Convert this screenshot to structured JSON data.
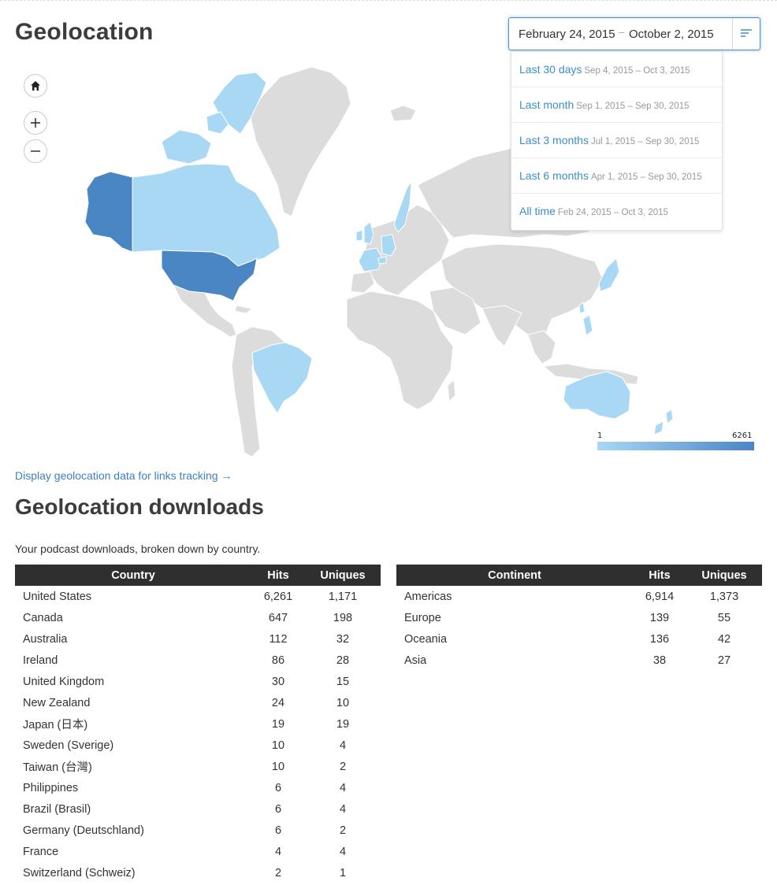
{
  "page": {
    "title": "Geolocation"
  },
  "date_range": {
    "start": "February 24, 2015",
    "separator": "–",
    "end": "October 2, 2015",
    "presets": [
      {
        "label": "Last 30 days",
        "range": "Sep 4, 2015 – Oct 3, 2015"
      },
      {
        "label": "Last month",
        "range": "Sep 1, 2015 – Sep 30, 2015"
      },
      {
        "label": "Last 3 months",
        "range": "Jul 1, 2015 – Sep 30, 2015"
      },
      {
        "label": "Last 6 months",
        "range": "Apr 1, 2015 – Sep 30, 2015"
      },
      {
        "label": "All time",
        "range": "Feb 24, 2015 – Oct 3, 2015"
      }
    ]
  },
  "map": {
    "legend_min": "1",
    "legend_max": "6261",
    "colors": {
      "no_data": "#dcdcdc",
      "low": "#a8d8f3",
      "high": "#4a86c4",
      "border": "#ffffff"
    }
  },
  "links": {
    "geo_links": "Display geolocation data for links tracking →"
  },
  "downloads": {
    "title": "Geolocation downloads",
    "subtitle": "Your podcast downloads, broken down by country.",
    "country_headers": [
      "Country",
      "Hits",
      "Uniques"
    ],
    "countries": [
      [
        "United States",
        "6,261",
        "1,171"
      ],
      [
        "Canada",
        "647",
        "198"
      ],
      [
        "Australia",
        "112",
        "32"
      ],
      [
        "Ireland",
        "86",
        "28"
      ],
      [
        "United Kingdom",
        "30",
        "15"
      ],
      [
        "New Zealand",
        "24",
        "10"
      ],
      [
        "Japan (日本)",
        "19",
        "19"
      ],
      [
        "Sweden (Sverige)",
        "10",
        "4"
      ],
      [
        "Taiwan (台灣)",
        "10",
        "2"
      ],
      [
        "Philippines",
        "6",
        "4"
      ],
      [
        "Brazil (Brasil)",
        "6",
        "4"
      ],
      [
        "Germany (Deutschland)",
        "6",
        "2"
      ],
      [
        "France",
        "4",
        "4"
      ],
      [
        "Switzerland (Schweiz)",
        "2",
        "1"
      ]
    ],
    "continent_headers": [
      "Continent",
      "Hits",
      "Uniques"
    ],
    "continents": [
      [
        "Americas",
        "6,914",
        "1,373"
      ],
      [
        "Europe",
        "139",
        "55"
      ],
      [
        "Oceania",
        "136",
        "42"
      ],
      [
        "Asia",
        "38",
        "27"
      ]
    ]
  }
}
